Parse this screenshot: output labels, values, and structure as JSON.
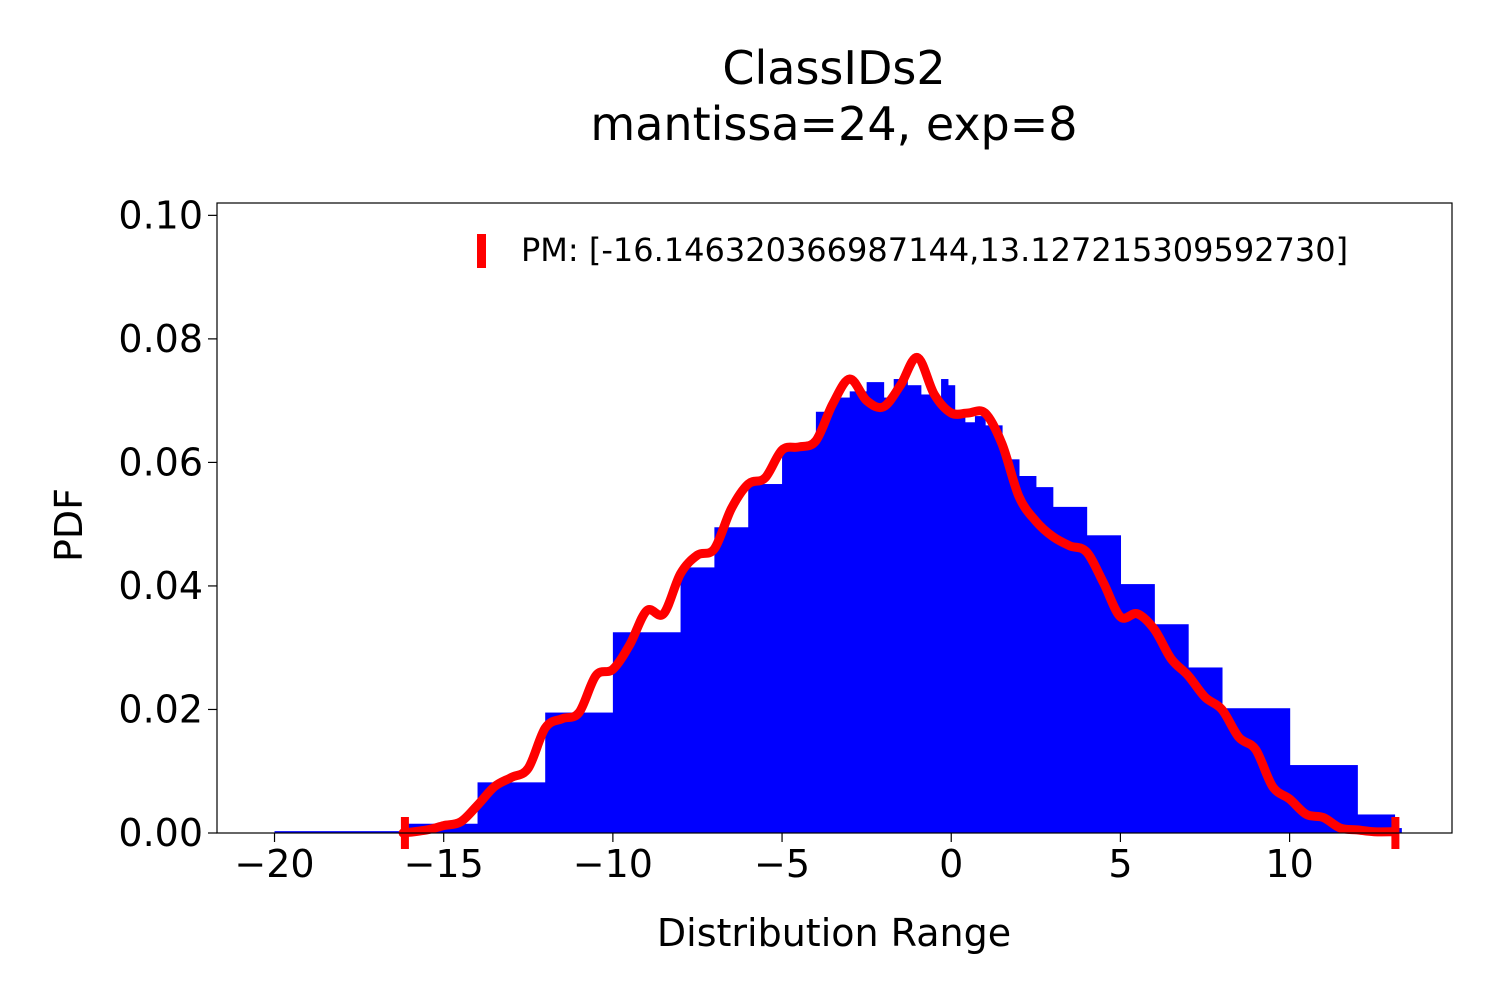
{
  "chart_data": {
    "type": "bar",
    "title_lines": [
      "ClassIDs2",
      "mantissa=24, exp=8"
    ],
    "xlabel": "Distribution Range",
    "ylabel": "PDF",
    "xlim": [
      -21.7,
      14.8
    ],
    "ylim": [
      0.0,
      0.102
    ],
    "x_ticks": [
      -20,
      -15,
      -10,
      -5,
      0,
      5,
      10
    ],
    "x_tick_labels": [
      "−20",
      "−15",
      "−10",
      "−5",
      "0",
      "5",
      "10"
    ],
    "y_ticks": [
      0.0,
      0.02,
      0.04,
      0.06,
      0.08,
      0.1
    ],
    "y_tick_labels": [
      "0.00",
      "0.02",
      "0.04",
      "0.06",
      "0.08",
      "0.10"
    ],
    "grid": false,
    "legend": {
      "position": "upper right",
      "entries": [
        {
          "label": "PM: [-16.146320366987144,13.127215309592730]",
          "color": "#ff0000",
          "marker": "|"
        }
      ]
    },
    "series": [
      {
        "kind": "histogram",
        "color": "#0000ff",
        "bins": [
          {
            "x0": -20.0,
            "x1": -16.2,
            "y": 0.0003
          },
          {
            "x0": -16.2,
            "x1": -14.0,
            "y": 0.0015
          },
          {
            "x0": -14.0,
            "x1": -12.0,
            "y": 0.0082
          },
          {
            "x0": -12.0,
            "x1": -10.0,
            "y": 0.0195
          },
          {
            "x0": -10.0,
            "x1": -8.0,
            "y": 0.0325
          },
          {
            "x0": -8.0,
            "x1": -7.0,
            "y": 0.043
          },
          {
            "x0": -7.0,
            "x1": -6.0,
            "y": 0.0495
          },
          {
            "x0": -6.0,
            "x1": -5.0,
            "y": 0.0565
          },
          {
            "x0": -5.0,
            "x1": -4.0,
            "y": 0.0628
          },
          {
            "x0": -4.0,
            "x1": -3.5,
            "y": 0.0682
          },
          {
            "x0": -3.5,
            "x1": -3.0,
            "y": 0.0705
          },
          {
            "x0": -3.0,
            "x1": -2.5,
            "y": 0.0715
          },
          {
            "x0": -2.5,
            "x1": -2.0,
            "y": 0.073
          },
          {
            "x0": -2.0,
            "x1": -1.7,
            "y": 0.0705
          },
          {
            "x0": -1.7,
            "x1": -1.3,
            "y": 0.0735
          },
          {
            "x0": -1.3,
            "x1": -0.9,
            "y": 0.0725
          },
          {
            "x0": -0.9,
            "x1": -0.6,
            "y": 0.071
          },
          {
            "x0": -0.6,
            "x1": -0.3,
            "y": 0.0705
          },
          {
            "x0": -0.3,
            "x1": -0.1,
            "y": 0.0735
          },
          {
            "x0": -0.1,
            "x1": 0.1,
            "y": 0.0725
          },
          {
            "x0": 0.1,
            "x1": 0.4,
            "y": 0.0685
          },
          {
            "x0": 0.4,
            "x1": 0.7,
            "y": 0.0665
          },
          {
            "x0": 0.7,
            "x1": 1.0,
            "y": 0.0675
          },
          {
            "x0": 1.0,
            "x1": 1.5,
            "y": 0.066
          },
          {
            "x0": 1.5,
            "x1": 2.0,
            "y": 0.0605
          },
          {
            "x0": 2.0,
            "x1": 2.5,
            "y": 0.0578
          },
          {
            "x0": 2.5,
            "x1": 3.0,
            "y": 0.056
          },
          {
            "x0": 3.0,
            "x1": 4.0,
            "y": 0.0528
          },
          {
            "x0": 4.0,
            "x1": 5.0,
            "y": 0.0482
          },
          {
            "x0": 5.0,
            "x1": 6.0,
            "y": 0.0403
          },
          {
            "x0": 6.0,
            "x1": 7.0,
            "y": 0.0338
          },
          {
            "x0": 7.0,
            "x1": 8.0,
            "y": 0.0268
          },
          {
            "x0": 8.0,
            "x1": 10.0,
            "y": 0.0202
          },
          {
            "x0": 10.0,
            "x1": 12.0,
            "y": 0.011
          },
          {
            "x0": 12.0,
            "x1": 13.1,
            "y": 0.003
          },
          {
            "x0": 13.1,
            "x1": 13.3,
            "y": 0.0008
          }
        ]
      },
      {
        "kind": "line",
        "color": "#ff0000",
        "x": [
          -16.2,
          -15.5,
          -15.0,
          -14.5,
          -14.0,
          -13.5,
          -13.0,
          -12.5,
          -12.0,
          -11.5,
          -11.0,
          -10.5,
          -10.0,
          -9.5,
          -9.0,
          -8.5,
          -8.0,
          -7.5,
          -7.0,
          -6.5,
          -6.0,
          -5.5,
          -5.0,
          -4.5,
          -4.0,
          -3.5,
          -3.0,
          -2.5,
          -2.0,
          -1.5,
          -1.0,
          -0.5,
          0.0,
          0.5,
          1.0,
          1.5,
          2.0,
          2.5,
          3.0,
          3.5,
          4.0,
          4.5,
          5.0,
          5.5,
          6.0,
          6.5,
          7.0,
          7.5,
          8.0,
          8.5,
          9.0,
          9.5,
          10.0,
          10.5,
          11.0,
          11.5,
          12.0,
          12.5,
          13.1
        ],
        "values": [
          0.0,
          0.0005,
          0.0012,
          0.0018,
          0.0045,
          0.0075,
          0.009,
          0.0105,
          0.017,
          0.0185,
          0.0195,
          0.0255,
          0.0265,
          0.0305,
          0.036,
          0.0355,
          0.042,
          0.045,
          0.046,
          0.0525,
          0.0565,
          0.0575,
          0.062,
          0.0625,
          0.0635,
          0.0695,
          0.0735,
          0.07,
          0.069,
          0.0725,
          0.077,
          0.071,
          0.068,
          0.068,
          0.068,
          0.063,
          0.0545,
          0.0505,
          0.048,
          0.0465,
          0.0455,
          0.0405,
          0.035,
          0.0355,
          0.033,
          0.0282,
          0.0255,
          0.022,
          0.02,
          0.0155,
          0.0135,
          0.0075,
          0.0055,
          0.003,
          0.0025,
          0.0008,
          0.0005,
          0.0002,
          0.0002
        ]
      },
      {
        "kind": "markers",
        "marker": "|",
        "color": "#ff0000",
        "x": [
          -16.146320366987144,
          13.12721530959273
        ],
        "values": [
          0.0,
          0.0
        ]
      }
    ]
  }
}
